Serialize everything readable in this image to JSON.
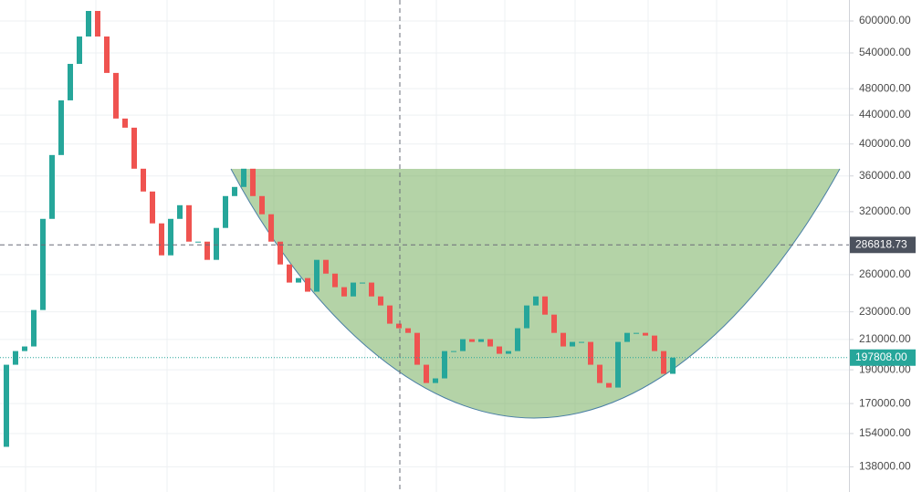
{
  "chart_data": {
    "type": "candlestick",
    "categories": [
      null,
      null,
      null,
      null,
      null,
      null,
      null,
      null,
      null,
      null,
      null,
      null,
      null,
      null,
      null,
      null,
      null,
      null,
      null,
      null,
      null,
      null,
      null,
      null,
      null,
      null,
      null,
      null,
      null,
      null,
      null,
      null,
      null,
      null,
      null,
      null,
      null,
      null,
      null,
      null,
      null,
      null,
      null,
      null,
      null,
      null,
      null,
      null,
      null,
      null,
      null,
      null,
      null,
      null,
      null,
      null,
      null,
      null,
      null,
      null,
      null,
      null,
      null,
      null,
      null,
      null,
      null,
      null,
      null,
      null,
      null,
      null,
      null,
      null
    ],
    "open": [
      147400,
      193200,
      202100,
      205200,
      231400,
      312500,
      385700,
      461900,
      520900,
      570100,
      620200,
      570100,
      505600,
      435000,
      422100,
      368700,
      342000,
      307900,
      277100,
      312500,
      326900,
      289900,
      289900,
      273000,
      303300,
      336900,
      347200,
      368700,
      336900,
      317300,
      289900,
      268900,
      253300,
      257100,
      245800,
      273000,
      260900,
      249500,
      242000,
      253300,
      253300,
      242000,
      234900,
      221200,
      217900,
      214600,
      193200,
      181900,
      184700,
      202100,
      202100,
      210200,
      208300,
      210200,
      205200,
      200300,
      202100,
      217900,
      234900,
      242000,
      227900,
      214600,
      205200,
      208300,
      208300,
      193200,
      181900,
      179200,
      208300,
      214600,
      214600,
      212700,
      202100,
      187500
    ],
    "close": [
      193200,
      202100,
      205200,
      231400,
      312500,
      385700,
      461900,
      520900,
      570100,
      620200,
      570100,
      505600,
      435000,
      422100,
      368700,
      342000,
      307900,
      277100,
      312500,
      326900,
      289900,
      289900,
      273000,
      303300,
      336900,
      347200,
      368700,
      336900,
      317300,
      289900,
      268900,
      253300,
      257100,
      245800,
      273000,
      260900,
      249500,
      242000,
      253300,
      253300,
      242000,
      234900,
      221200,
      217900,
      214600,
      193200,
      181900,
      184700,
      202100,
      202100,
      210200,
      208300,
      210200,
      205200,
      200300,
      202100,
      217900,
      234900,
      242000,
      227900,
      214600,
      205200,
      208300,
      208300,
      193200,
      181900,
      179200,
      208300,
      214600,
      214600,
      212700,
      202100,
      187500,
      197808
    ],
    "up_color": "#26a69a",
    "down_color": "#ef5350",
    "ylim": [
      127000,
      643000
    ],
    "log_scale": true,
    "grid": true,
    "yticks": [
      {
        "value": 600000,
        "label": "600000.00"
      },
      {
        "value": 540000,
        "label": "540000.00"
      },
      {
        "value": 480000,
        "label": "480000.00"
      },
      {
        "value": 440000,
        "label": "440000.00"
      },
      {
        "value": 400000,
        "label": "400000.00"
      },
      {
        "value": 360000,
        "label": "360000.00"
      },
      {
        "value": 320000,
        "label": "320000.00"
      },
      {
        "value": 260000,
        "label": "260000.00"
      },
      {
        "value": 230000,
        "label": "230000.00"
      },
      {
        "value": 210000,
        "label": "210000.00"
      },
      {
        "value": 190000,
        "label": "190000.00"
      },
      {
        "value": 170000,
        "label": "170000.00"
      },
      {
        "value": 154000,
        "label": "154000.00"
      },
      {
        "value": 138000,
        "label": "138000.00"
      }
    ],
    "crosshair": {
      "value": 286818.73,
      "label": "286818.73"
    },
    "last_price": {
      "value": 197808,
      "label": "197808.00"
    }
  }
}
